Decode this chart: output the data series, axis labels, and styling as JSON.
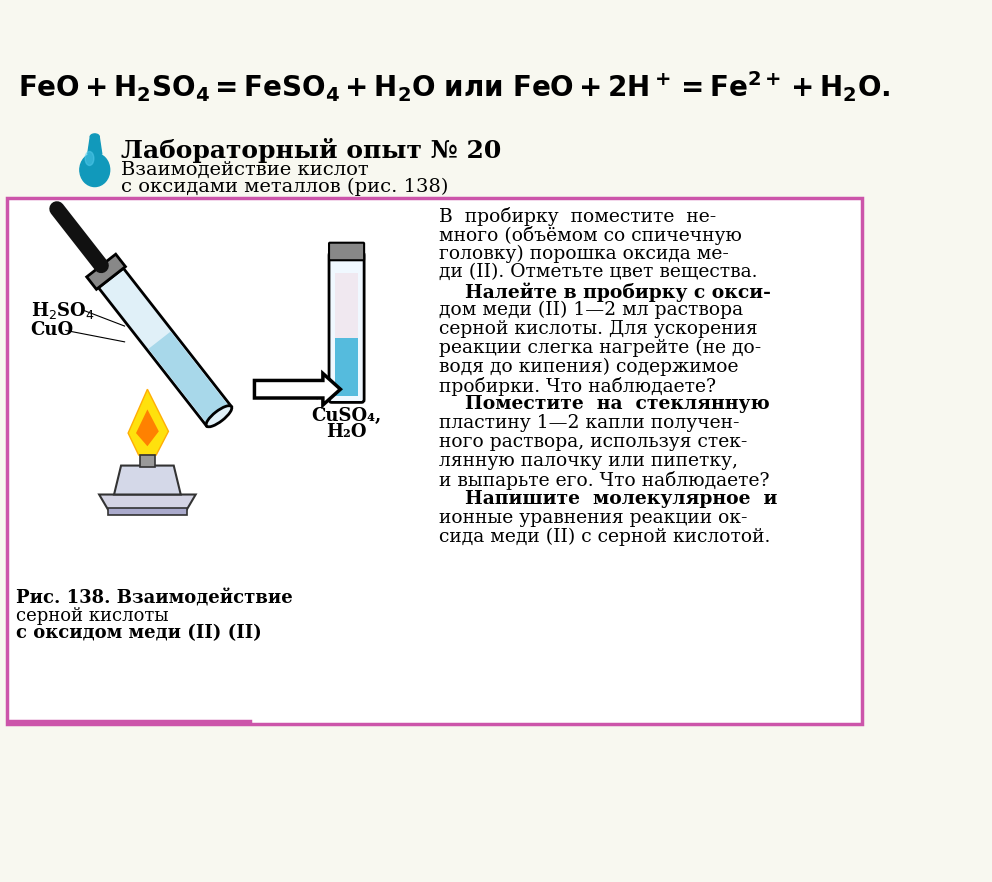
{
  "bg_color": "#f8f8f0",
  "border_color": "#cc55aa",
  "lab_title_bold": "Лабораторный опыт № 20",
  "lab_subtitle_line1": "Взаимодействие кислот",
  "lab_subtitle_line2": "с оксидами металлов (рис. 138)",
  "right_lines": [
    "В  пробирку  поместите  не-",
    "много (объёмом со спичечную",
    "головку) порошка оксида ме-",
    "ди (II). Отметьте цвет вещества.",
    "    Налейте в пробирку с окси-",
    "дом меди (II) 1—2 мл раствора",
    "серной кислоты. Для ускорения",
    "реакции слегка нагрейте (не до-",
    "водя до кипения) содержимое",
    "пробирки. Что наблюдаете?",
    "    Поместите  на  стеклянную",
    "пластину 1—2 капли получен-",
    "ного раствора, используя стек-",
    "лянную палочку или пипетку,",
    "и выпарьте его. Что наблюдаете?",
    "    Напишите  молекулярное  и",
    "ионные уравнения реакции ок-",
    "сида меди (II) с серной кислотой."
  ],
  "fig_caption_line1": "Рис. 138. Взаимодействие",
  "fig_caption_line2": "серной кислоты",
  "fig_caption_line3": "с оксидом меди (II)",
  "label_h2so4": "H₂SO₄",
  "label_cuo": "CuO",
  "label_cuso4_line1": "CuSO₄,",
  "label_cuso4_line2": "H₂O"
}
